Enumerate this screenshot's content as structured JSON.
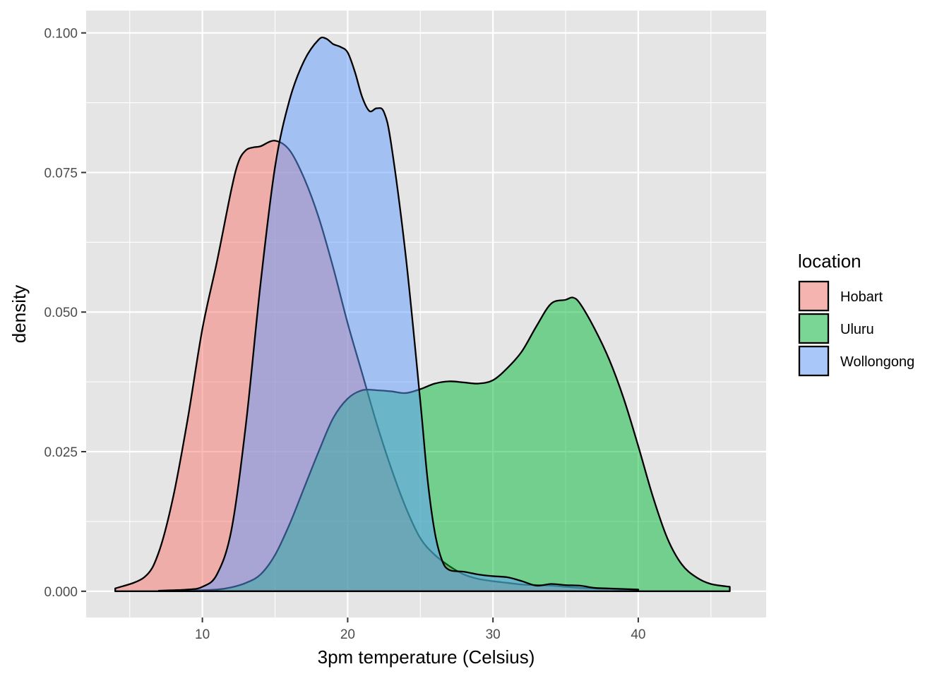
{
  "chart_data": {
    "type": "area",
    "subtype": "density",
    "title": "",
    "xlabel": "3pm temperature (Celsius)",
    "ylabel": "density",
    "xlim": [
      2,
      48.8
    ],
    "ylim": [
      -0.0047,
      0.104
    ],
    "x_ticks": [
      10,
      20,
      30,
      40
    ],
    "x_minor_ticks": [
      5,
      15,
      25,
      35,
      45
    ],
    "y_ticks": [
      0.0,
      0.025,
      0.05,
      0.075,
      0.1
    ],
    "y_tick_labels": [
      "0.000",
      "0.025",
      "0.050",
      "0.075",
      "0.100"
    ],
    "y_minor_ticks": [
      0.0125,
      0.0375,
      0.0625,
      0.0875
    ],
    "grid": true,
    "panel_background": "#e5e5e5",
    "gridline_color": "#ffffff",
    "fill_opacity": 0.5,
    "outline_color": "#000000",
    "legend": {
      "title": "location",
      "position": "right",
      "entries": [
        "Hobart",
        "Uluru",
        "Wollongong"
      ]
    },
    "series": [
      {
        "name": "Hobart",
        "color": "#F8766D",
        "x": [
          4.0,
          6.0,
          7.0,
          8.0,
          9.0,
          10.0,
          11.0,
          12.0,
          12.5,
          13.0,
          13.5,
          14.0,
          15.0,
          16.0,
          17.0,
          18.0,
          19.0,
          20.0,
          21.0,
          22.0,
          23.0,
          24.0,
          25.0,
          26.0,
          27.0,
          28.0,
          29.0,
          30.0,
          31.0,
          32.0,
          33.0,
          34.0,
          35.0,
          36.0,
          37.0,
          38.0,
          39.0,
          40.0
        ],
        "values": [
          0.0005,
          0.0025,
          0.007,
          0.017,
          0.031,
          0.047,
          0.059,
          0.072,
          0.077,
          0.079,
          0.0795,
          0.0797,
          0.0807,
          0.079,
          0.074,
          0.067,
          0.058,
          0.048,
          0.039,
          0.03,
          0.022,
          0.015,
          0.0095,
          0.0065,
          0.0045,
          0.003,
          0.0022,
          0.0018,
          0.0015,
          0.0012,
          0.0011,
          0.001,
          0.0008,
          0.0006,
          0.0005,
          0.0004,
          0.0003,
          0.0002
        ]
      },
      {
        "name": "Uluru",
        "color": "#00BA38",
        "x": [
          9.0,
          11.0,
          12.0,
          13.0,
          14.0,
          15.0,
          16.0,
          17.0,
          18.0,
          19.0,
          20.0,
          21.0,
          22.0,
          23.0,
          24.0,
          25.0,
          26.0,
          27.0,
          28.0,
          29.0,
          30.0,
          31.0,
          32.0,
          33.0,
          34.0,
          35.0,
          35.5,
          36.0,
          37.0,
          38.0,
          39.0,
          40.0,
          41.0,
          42.0,
          43.0,
          44.0,
          45.0,
          46.3
        ],
        "values": [
          0.0001,
          0.0003,
          0.0007,
          0.0015,
          0.003,
          0.0065,
          0.012,
          0.0185,
          0.025,
          0.031,
          0.0345,
          0.036,
          0.036,
          0.0358,
          0.0355,
          0.0362,
          0.0372,
          0.0376,
          0.0374,
          0.0372,
          0.0378,
          0.04,
          0.043,
          0.0475,
          0.0515,
          0.0522,
          0.0526,
          0.0515,
          0.047,
          0.0415,
          0.0345,
          0.026,
          0.017,
          0.0095,
          0.0048,
          0.0025,
          0.0013,
          0.0008
        ]
      },
      {
        "name": "Wollongong",
        "color": "#619CFF",
        "x": [
          7.0,
          9.0,
          10.0,
          11.0,
          12.0,
          13.0,
          14.0,
          15.0,
          16.0,
          17.0,
          18.0,
          18.5,
          19.0,
          19.5,
          20.0,
          20.5,
          21.0,
          21.5,
          22.0,
          22.5,
          23.0,
          24.0,
          25.0,
          25.5,
          26.0,
          26.5,
          27.0,
          28.0,
          29.0,
          30.0,
          31.0,
          32.0,
          33.0,
          34.0,
          35.0,
          36.0,
          37.0,
          38.0,
          39.0,
          40.0
        ],
        "values": [
          0.0001,
          0.0003,
          0.0008,
          0.003,
          0.011,
          0.03,
          0.055,
          0.076,
          0.088,
          0.095,
          0.0988,
          0.099,
          0.098,
          0.0975,
          0.0965,
          0.093,
          0.0885,
          0.086,
          0.0865,
          0.0858,
          0.08,
          0.06,
          0.034,
          0.02,
          0.0105,
          0.0055,
          0.0038,
          0.0035,
          0.003,
          0.0027,
          0.0025,
          0.0018,
          0.001,
          0.0013,
          0.0011,
          0.001,
          0.0006,
          0.0005,
          0.0004,
          0.0003
        ]
      }
    ]
  }
}
